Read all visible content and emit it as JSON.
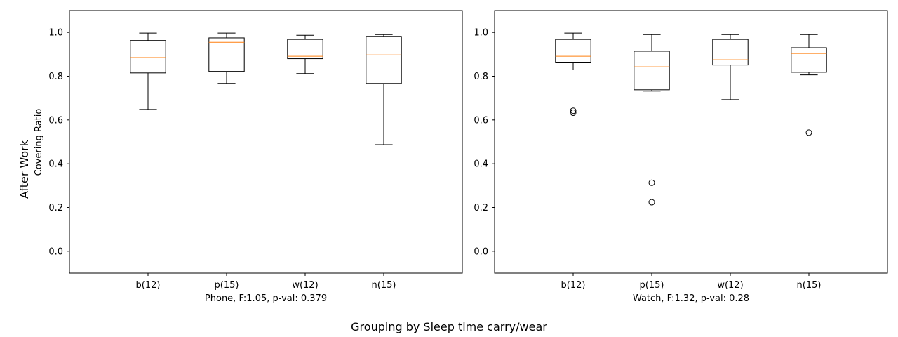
{
  "figure": {
    "row_label": "After Work",
    "supxlabel": "Grouping by Sleep time carry/wear"
  },
  "chart_data": [
    {
      "type": "box",
      "xlabel": "Phone, F:1.05, p-val: 0.379",
      "ylabel": "Covering Ratio",
      "ylim": [
        -0.1,
        1.1
      ],
      "yticks": [
        0.0,
        0.2,
        0.4,
        0.6,
        0.8,
        1.0
      ],
      "ytick_labels": [
        "0.0",
        "0.2",
        "0.4",
        "0.6",
        "0.8",
        "1.0"
      ],
      "grid": false,
      "categories": [
        "b(12)",
        "p(15)",
        "w(12)",
        "n(15)"
      ],
      "boxes": [
        {
          "whisker_low": 0.648,
          "q1": 0.815,
          "median": 0.885,
          "q3": 0.963,
          "whisker_high": 0.997,
          "fliers": []
        },
        {
          "whisker_low": 0.767,
          "q1": 0.822,
          "median": 0.955,
          "q3": 0.975,
          "whisker_high": 0.997,
          "fliers": []
        },
        {
          "whisker_low": 0.812,
          "q1": 0.88,
          "median": 0.891,
          "q3": 0.968,
          "whisker_high": 0.987,
          "fliers": []
        },
        {
          "whisker_low": 0.487,
          "q1": 0.767,
          "median": 0.897,
          "q3": 0.982,
          "whisker_high": 0.99,
          "fliers": []
        }
      ]
    },
    {
      "type": "box",
      "xlabel": "Watch, F:1.32, p-val: 0.28",
      "ylabel": "",
      "ylim": [
        -0.1,
        1.1
      ],
      "yticks": [
        0.0,
        0.2,
        0.4,
        0.6,
        0.8,
        1.0
      ],
      "ytick_labels": [
        "0.0",
        "0.2",
        "0.4",
        "0.6",
        "0.8",
        "1.0"
      ],
      "grid": false,
      "categories": [
        "b(12)",
        "p(15)",
        "w(12)",
        "n(15)"
      ],
      "boxes": [
        {
          "whisker_low": 0.829,
          "q1": 0.861,
          "median": 0.891,
          "q3": 0.968,
          "whisker_high": 0.997,
          "fliers": [
            0.642,
            0.633
          ]
        },
        {
          "whisker_low": 0.732,
          "q1": 0.738,
          "median": 0.843,
          "q3": 0.914,
          "whisker_high": 0.99,
          "fliers": [
            0.313,
            0.224
          ]
        },
        {
          "whisker_low": 0.693,
          "q1": 0.851,
          "median": 0.875,
          "q3": 0.968,
          "whisker_high": 0.99,
          "fliers": []
        },
        {
          "whisker_low": 0.806,
          "q1": 0.818,
          "median": 0.904,
          "q3": 0.93,
          "whisker_high": 0.99,
          "fliers": [
            0.542
          ]
        }
      ]
    }
  ]
}
